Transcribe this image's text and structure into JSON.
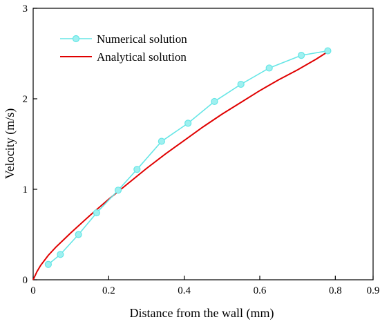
{
  "chart_data": {
    "type": "line",
    "xlabel": "Distance from the wall (mm)",
    "ylabel": "Velocity (m/s)",
    "xlim": [
      0,
      0.9
    ],
    "ylim": [
      0,
      3
    ],
    "xticks": [
      "0",
      "0.2",
      "0.4",
      "0.6",
      "0.8",
      "0.9"
    ],
    "xtick_values": [
      0,
      0.2,
      0.4,
      0.6,
      0.8,
      0.9
    ],
    "yticks": [
      "0",
      "1",
      "2",
      "3"
    ],
    "ytick_values": [
      0,
      1,
      2,
      3
    ],
    "grid": false,
    "legend_position": "top-left",
    "series": [
      {
        "name": "Numerical solution",
        "color": "#66e6e6",
        "marker": "circle",
        "x": [
          0.04,
          0.072,
          0.12,
          0.168,
          0.225,
          0.275,
          0.34,
          0.41,
          0.48,
          0.55,
          0.625,
          0.71,
          0.78
        ],
        "y": [
          0.17,
          0.28,
          0.5,
          0.74,
          0.99,
          1.22,
          1.53,
          1.73,
          1.97,
          2.16,
          2.34,
          2.48,
          2.53
        ]
      },
      {
        "name": "Analytical solution",
        "color": "#e00000",
        "marker": "none",
        "x": [
          0,
          0.01,
          0.02,
          0.04,
          0.06,
          0.08,
          0.1,
          0.15,
          0.2,
          0.25,
          0.3,
          0.35,
          0.4,
          0.45,
          0.5,
          0.55,
          0.6,
          0.65,
          0.7,
          0.75,
          0.78
        ],
        "y": [
          0,
          0.09,
          0.16,
          0.27,
          0.36,
          0.44,
          0.52,
          0.71,
          0.89,
          1.06,
          1.23,
          1.39,
          1.54,
          1.69,
          1.83,
          1.96,
          2.09,
          2.21,
          2.32,
          2.44,
          2.52
        ]
      }
    ]
  }
}
